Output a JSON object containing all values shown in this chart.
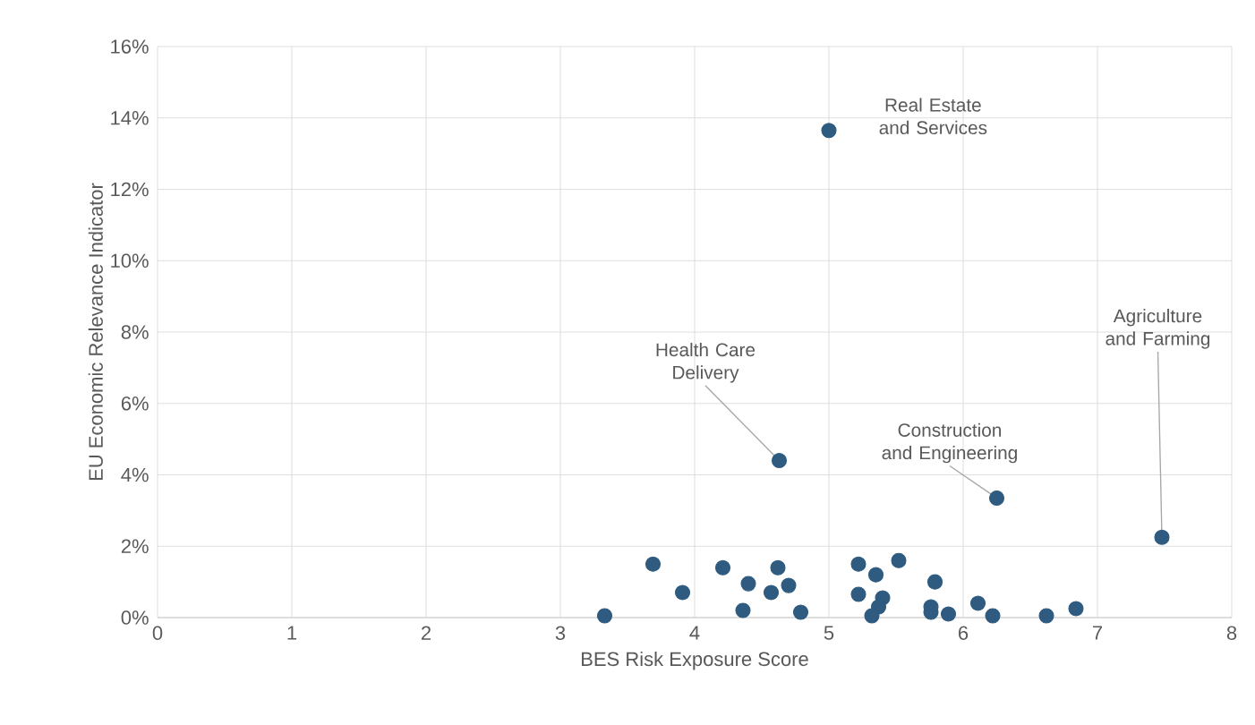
{
  "chart_data": {
    "type": "scatter",
    "xlabel": "BES Risk Exposure Score",
    "ylabel": "EU Economic Relevance Indicator",
    "x": [
      3.33,
      3.69,
      3.91,
      4.21,
      4.4,
      4.36,
      4.62,
      4.57,
      4.7,
      4.79,
      5.22,
      5.35,
      5.52,
      5.22,
      5.4,
      5.37,
      5.32,
      5.79,
      5.76,
      5.76,
      5.89,
      6.11,
      6.22,
      6.62,
      6.84,
      5.0,
      4.63,
      6.25,
      7.48
    ],
    "values": [
      0.05,
      1.5,
      0.7,
      1.4,
      0.95,
      0.2,
      1.4,
      0.7,
      0.9,
      0.15,
      1.5,
      1.2,
      1.6,
      0.65,
      0.55,
      0.3,
      0.05,
      1.0,
      0.3,
      0.15,
      0.1,
      0.4,
      0.05,
      0.05,
      0.25,
      13.65,
      4.4,
      3.35,
      2.25
    ],
    "color": "#2e5b7f",
    "grid": true,
    "xlim": [
      0,
      8
    ],
    "xticks": [
      0,
      1,
      2,
      3,
      4,
      5,
      6,
      7,
      8
    ],
    "ylim": [
      0,
      16
    ],
    "yticks": [
      {
        "value": 0,
        "label": "0%"
      },
      {
        "value": 2,
        "label": "2%"
      },
      {
        "value": 4,
        "label": "4%"
      },
      {
        "value": 6,
        "label": "6%"
      },
      {
        "value": 8,
        "label": "8%"
      },
      {
        "value": 10,
        "label": "10%"
      },
      {
        "value": 12,
        "label": "12%"
      },
      {
        "value": 14,
        "label": "14%"
      },
      {
        "value": 16,
        "label": "16%"
      }
    ],
    "annotations": [
      {
        "text": "Real Estate and Services",
        "x": 5.0,
        "y": 13.65
      },
      {
        "text": "Health Care Delivery",
        "x": 4.63,
        "y": 4.4
      },
      {
        "text": "Construction and Engineering",
        "x": 6.25,
        "y": 3.35
      },
      {
        "text": "Agriculture and Farming",
        "x": 7.48,
        "y": 2.25
      }
    ]
  }
}
